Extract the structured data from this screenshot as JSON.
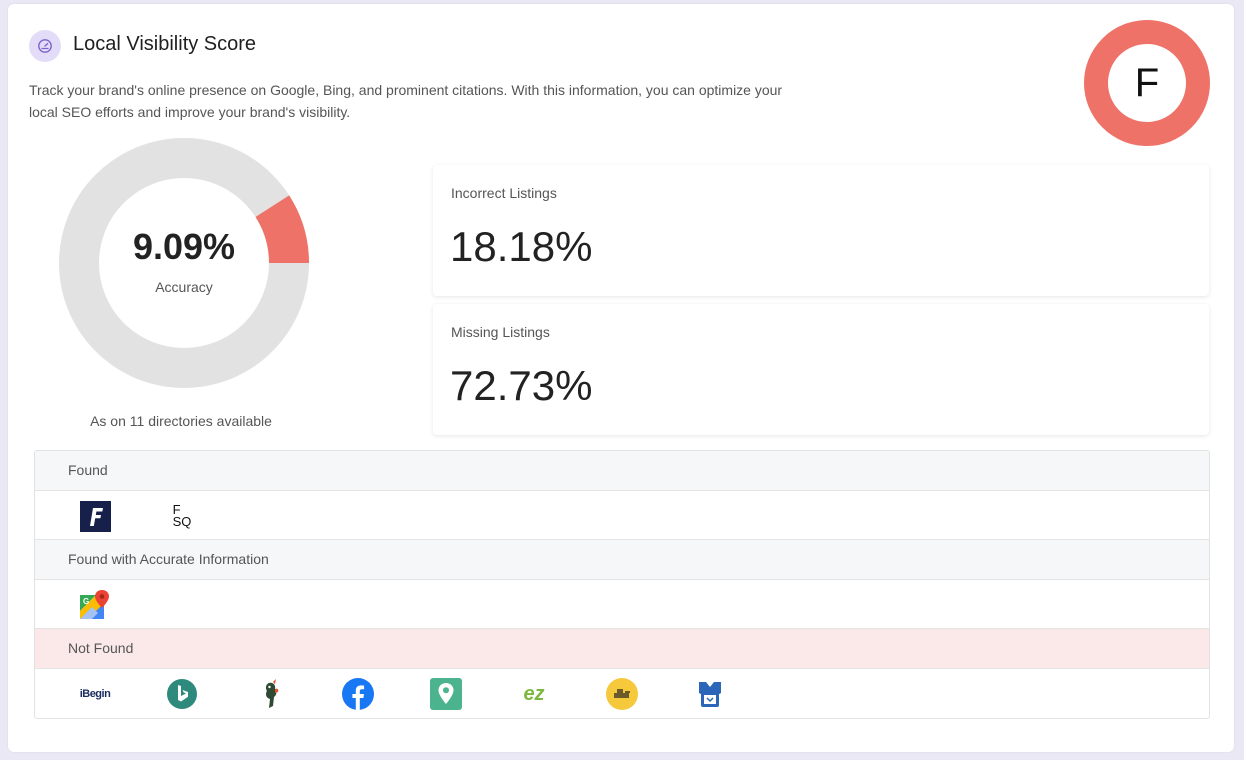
{
  "header": {
    "title": "Local Visibility Score",
    "description": "Track your brand's online presence on Google, Bing, and prominent citations. With this information, you can optimize your local SEO efforts and improve your brand's visibility.",
    "icon": "gauge-icon"
  },
  "grade": {
    "letter": "F",
    "color": "#ee7268"
  },
  "accuracy": {
    "value": "9.09%",
    "fraction": 0.0909,
    "label": "Accuracy",
    "footnote": "As on 11 directories available",
    "accent_color": "#ee7268",
    "track_color": "#e2e2e2"
  },
  "stats": [
    {
      "label": "Incorrect Listings",
      "value": "18.18%"
    },
    {
      "label": "Missing Listings",
      "value": "72.73%"
    }
  ],
  "sections": {
    "found": {
      "label": "Found",
      "icons": [
        "foursquare-f-icon",
        "fsq-icon"
      ],
      "fsq_text_top": "F",
      "fsq_text_bottom": "SQ"
    },
    "accurate": {
      "label": "Found with Accurate Information",
      "icons": [
        "google-maps-icon"
      ]
    },
    "not_found": {
      "label": "Not Found",
      "header_color": "#fbe9ea",
      "icons": [
        "ibegin-icon",
        "bing-icon",
        "hotfrog-icon",
        "facebook-icon",
        "map-pin-icon",
        "ezlocal-icon",
        "cylex-icon",
        "brownbook-icon"
      ],
      "ibegin_text": "iBegin",
      "ez_text": "ez"
    }
  }
}
